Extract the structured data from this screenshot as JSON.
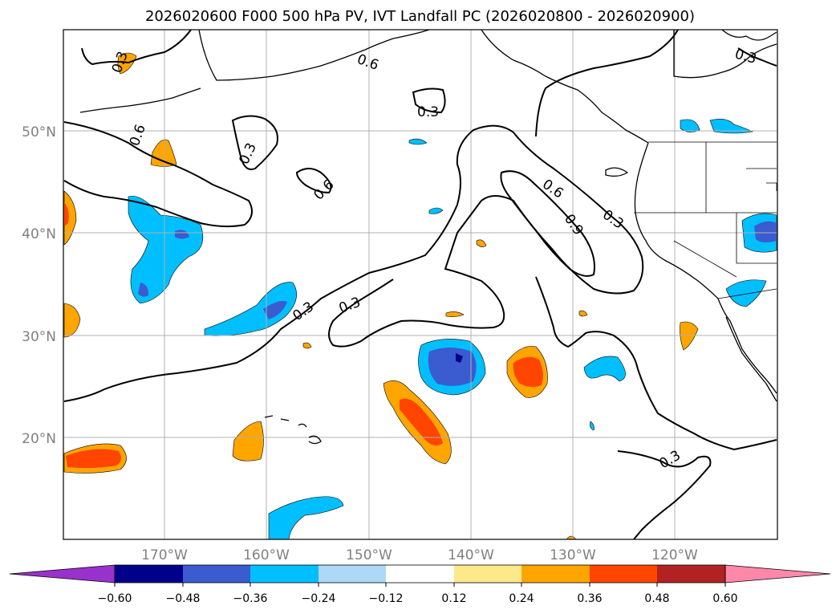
{
  "title": "2026020600 F000 500 hPa PV, IVT Landfall PC (2026020800 - 2026020900)",
  "map": {
    "lat_labels": [
      "50°N",
      "40°N",
      "30°N",
      "20°N"
    ],
    "lon_labels": [
      "170°W",
      "160°W",
      "150°W",
      "140°W",
      "130°W",
      "120°W"
    ],
    "lat_range": [
      10,
      60
    ],
    "lon_range": [
      -180,
      -110
    ],
    "contour_labels": [
      "0.3",
      "0.6",
      "0.9"
    ],
    "contour_levels": [
      0.3,
      0.6,
      0.9
    ]
  },
  "colorbar": {
    "tick_labels": [
      "−0.60",
      "−0.48",
      "−0.36",
      "−0.24",
      "−0.12",
      "0.12",
      "0.24",
      "0.36",
      "0.48",
      "0.60"
    ],
    "colors": [
      "#9932cc",
      "#00008b",
      "#3b5bd0",
      "#00bfff",
      "#add8f6",
      "#ffffff",
      "#fde88a",
      "#ffa500",
      "#ff4500",
      "#b22222",
      "#ff88aa"
    ],
    "extend": "both"
  }
}
